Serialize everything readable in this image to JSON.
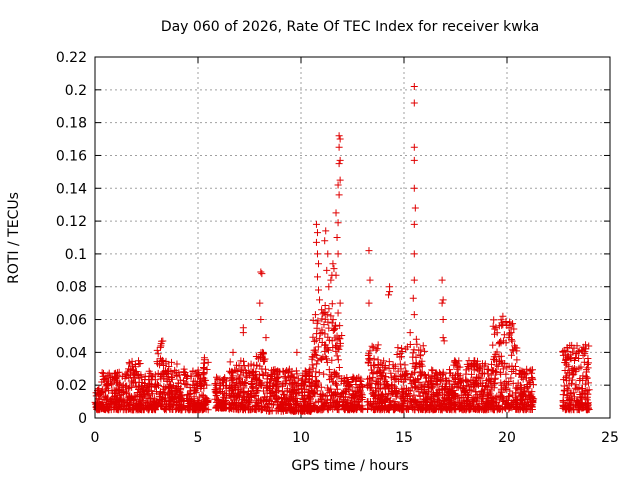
{
  "chart_data": {
    "type": "scatter",
    "title": "Day 060 of 2026, Rate Of TEC Index for receiver kwka",
    "xlabel": "GPS time / hours",
    "ylabel": "ROTI / TECUs",
    "xlim": [
      0,
      25
    ],
    "ylim": [
      0,
      0.22
    ],
    "xticks": [
      0,
      5,
      10,
      15,
      20,
      25
    ],
    "yticks": [
      0,
      0.02,
      0.04,
      0.06,
      0.08,
      0.1,
      0.12,
      0.14,
      0.16,
      0.18,
      0.2,
      0.22
    ],
    "grid": true,
    "marker": "+",
    "color": "#e00000",
    "segments": [
      {
        "x": [
          0.0,
          0.3
        ],
        "ymin": 0.005,
        "ymax": 0.018
      },
      {
        "x": [
          0.3,
          1.4
        ],
        "ymin": 0.005,
        "ymax": 0.028
      },
      {
        "x": [
          1.4,
          2.2
        ],
        "ymin": 0.005,
        "ymax": 0.035
      },
      {
        "x": [
          2.2,
          3.0
        ],
        "ymin": 0.005,
        "ymax": 0.03
      },
      {
        "x": [
          3.0,
          3.3
        ],
        "ymin": 0.007,
        "ymax": 0.05
      },
      {
        "x": [
          3.3,
          4.0
        ],
        "ymin": 0.005,
        "ymax": 0.036
      },
      {
        "x": [
          4.0,
          5.2
        ],
        "ymin": 0.005,
        "ymax": 0.03
      },
      {
        "x": [
          5.2,
          5.5
        ],
        "ymin": 0.005,
        "ymax": 0.042
      },
      {
        "x": [
          5.8,
          6.4
        ],
        "ymin": 0.006,
        "ymax": 0.025
      },
      {
        "x": [
          6.5,
          7.8
        ],
        "ymin": 0.005,
        "ymax": 0.035
      },
      {
        "x": [
          7.8,
          8.3
        ],
        "ymin": 0.005,
        "ymax": 0.04
      },
      {
        "x": [
          8.3,
          10.5
        ],
        "ymin": 0.004,
        "ymax": 0.03
      },
      {
        "x": [
          10.5,
          11.0
        ],
        "ymin": 0.005,
        "ymax": 0.06
      },
      {
        "x": [
          11.0,
          11.6
        ],
        "ymin": 0.005,
        "ymax": 0.07
      },
      {
        "x": [
          11.6,
          12.0
        ],
        "ymin": 0.005,
        "ymax": 0.06
      },
      {
        "x": [
          12.0,
          13.0
        ],
        "ymin": 0.005,
        "ymax": 0.025
      },
      {
        "x": [
          13.2,
          13.8
        ],
        "ymin": 0.005,
        "ymax": 0.045
      },
      {
        "x": [
          13.8,
          14.6
        ],
        "ymin": 0.005,
        "ymax": 0.035
      },
      {
        "x": [
          14.6,
          16.0
        ],
        "ymin": 0.005,
        "ymax": 0.045
      },
      {
        "x": [
          16.0,
          17.4
        ],
        "ymin": 0.005,
        "ymax": 0.03
      },
      {
        "x": [
          17.4,
          19.3
        ],
        "ymin": 0.005,
        "ymax": 0.035
      },
      {
        "x": [
          19.3,
          20.5
        ],
        "ymin": 0.005,
        "ymax": 0.06
      },
      {
        "x": [
          20.5,
          21.3
        ],
        "ymin": 0.005,
        "ymax": 0.03
      },
      {
        "x": [
          22.7,
          24.0
        ],
        "ymin": 0.005,
        "ymax": 0.045
      }
    ],
    "outliers": [
      [
        8.05,
        0.089
      ],
      [
        8.1,
        0.088
      ],
      [
        8.0,
        0.07
      ],
      [
        8.05,
        0.06
      ],
      [
        8.3,
        0.049
      ],
      [
        6.7,
        0.04
      ],
      [
        7.2,
        0.055
      ],
      [
        7.2,
        0.052
      ],
      [
        9.8,
        0.04
      ],
      [
        10.75,
        0.118
      ],
      [
        10.8,
        0.113
      ],
      [
        10.75,
        0.107
      ],
      [
        10.8,
        0.1
      ],
      [
        10.85,
        0.094
      ],
      [
        10.8,
        0.086
      ],
      [
        10.85,
        0.078
      ],
      [
        10.9,
        0.072
      ],
      [
        10.7,
        0.063
      ],
      [
        11.0,
        0.066
      ],
      [
        11.2,
        0.114
      ],
      [
        11.15,
        0.108
      ],
      [
        11.3,
        0.1
      ],
      [
        11.25,
        0.09
      ],
      [
        11.35,
        0.08
      ],
      [
        11.5,
        0.087
      ],
      [
        11.55,
        0.094
      ],
      [
        11.6,
        0.091
      ],
      [
        11.45,
        0.084
      ],
      [
        11.7,
        0.125
      ],
      [
        11.8,
        0.119
      ],
      [
        11.85,
        0.172
      ],
      [
        11.9,
        0.17
      ],
      [
        11.85,
        0.165
      ],
      [
        11.9,
        0.157
      ],
      [
        11.85,
        0.155
      ],
      [
        11.9,
        0.145
      ],
      [
        11.8,
        0.142
      ],
      [
        11.85,
        0.136
      ],
      [
        11.75,
        0.11
      ],
      [
        11.8,
        0.1
      ],
      [
        11.7,
        0.087
      ],
      [
        11.9,
        0.07
      ],
      [
        11.8,
        0.064
      ],
      [
        13.3,
        0.102
      ],
      [
        13.35,
        0.084
      ],
      [
        13.3,
        0.07
      ],
      [
        14.3,
        0.08
      ],
      [
        14.3,
        0.077
      ],
      [
        14.25,
        0.075
      ],
      [
        15.5,
        0.202
      ],
      [
        15.5,
        0.192
      ],
      [
        15.5,
        0.165
      ],
      [
        15.5,
        0.157
      ],
      [
        15.5,
        0.14
      ],
      [
        15.55,
        0.128
      ],
      [
        15.5,
        0.118
      ],
      [
        15.5,
        0.1
      ],
      [
        15.5,
        0.084
      ],
      [
        15.45,
        0.073
      ],
      [
        15.5,
        0.063
      ],
      [
        15.3,
        0.052
      ],
      [
        15.6,
        0.048
      ],
      [
        16.85,
        0.084
      ],
      [
        16.9,
        0.072
      ],
      [
        16.85,
        0.07
      ],
      [
        16.9,
        0.06
      ],
      [
        16.9,
        0.049
      ],
      [
        16.95,
        0.047
      ],
      [
        19.8,
        0.062
      ],
      [
        19.75,
        0.058
      ],
      [
        20.1,
        0.055
      ],
      [
        20.2,
        0.052
      ],
      [
        23.4,
        0.044
      ]
    ]
  }
}
